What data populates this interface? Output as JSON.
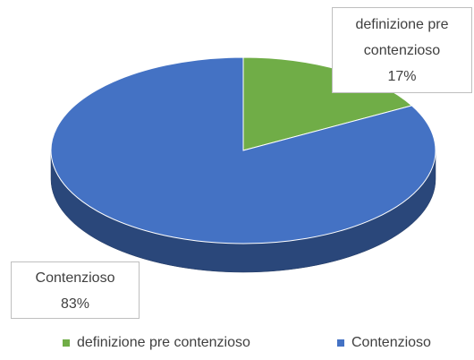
{
  "chart_data": {
    "type": "pie",
    "categories": [
      "definizione pre contenzioso",
      "Contenzioso"
    ],
    "values": [
      17,
      83
    ],
    "value_labels": [
      "17%",
      "83%"
    ],
    "colors": [
      "#70ad47",
      "#4472c4"
    ],
    "legend": "bottom"
  }
}
